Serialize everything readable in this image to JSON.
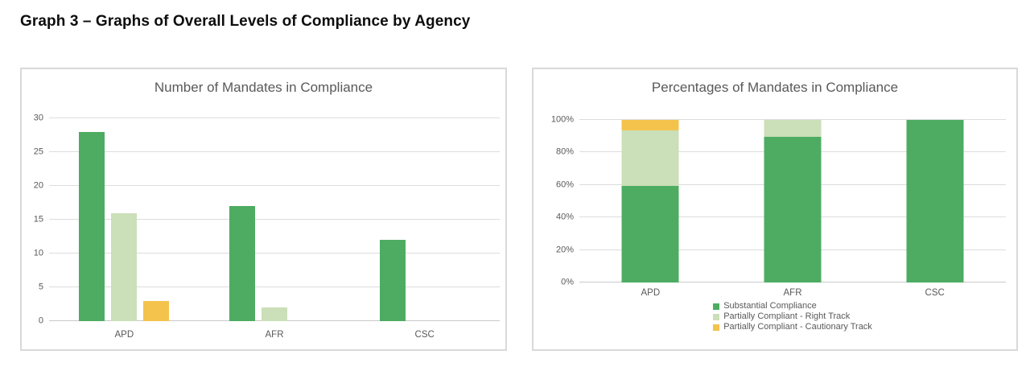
{
  "page": {
    "title": "Graph 3 – Graphs of Overall Levels of Compliance by Agency"
  },
  "colors": {
    "substantial": "#4dac62",
    "right_track": "#cbdfb8",
    "cautionary": "#f3c34c",
    "gridline": "#dcdcdc",
    "axis_text": "#595959"
  },
  "chart_data": [
    {
      "type": "bar",
      "title": "Number of Mandates in Compliance",
      "categories": [
        "APD",
        "AFR",
        "CSC"
      ],
      "series": [
        {
          "name": "Substantial Compliance",
          "color": "#4dac62",
          "values": [
            28,
            17,
            12
          ]
        },
        {
          "name": "Partially Compliant - Right Track",
          "color": "#cbdfb8",
          "values": [
            16,
            2,
            0
          ]
        },
        {
          "name": "Partially Compliant - Cautionary Track",
          "color": "#f3c34c",
          "values": [
            3,
            0,
            0
          ]
        }
      ],
      "ylim": [
        0,
        30
      ],
      "ytick_step": 5,
      "ytick_format": "number",
      "grid": true,
      "legend_position": "none"
    },
    {
      "type": "stacked-bar",
      "title": "Percentages of Mandates in Compliance",
      "categories": [
        "APD",
        "AFR",
        "CSC"
      ],
      "series": [
        {
          "name": "Substantial Compliance",
          "color": "#4dac62",
          "values": [
            59.6,
            89.5,
            100
          ]
        },
        {
          "name": "Partially Compliant - Right Track",
          "color": "#cbdfb8",
          "values": [
            34.0,
            10.5,
            0
          ]
        },
        {
          "name": "Partially Compliant - Cautionary Track",
          "color": "#f3c34c",
          "values": [
            6.4,
            0,
            0
          ]
        }
      ],
      "ylim": [
        0,
        100
      ],
      "ytick_step": 20,
      "ytick_format": "percent",
      "grid": true,
      "legend_position": "bottom"
    }
  ]
}
